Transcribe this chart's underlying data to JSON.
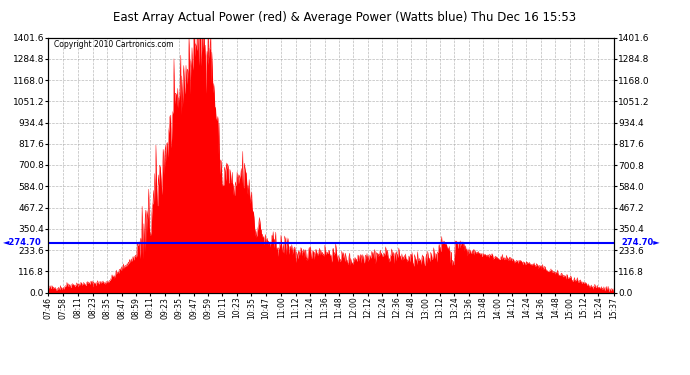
{
  "title": "East Array Actual Power (red) & Average Power (Watts blue) Thu Dec 16 15:53",
  "copyright": "Copyright 2010 Cartronics.com",
  "average_power": 274.7,
  "y_max": 1401.6,
  "y_min": 0.0,
  "y_ticks": [
    0.0,
    116.8,
    233.6,
    350.4,
    467.2,
    584.0,
    700.8,
    817.6,
    934.4,
    1051.2,
    1168.0,
    1284.8,
    1401.6
  ],
  "fill_color": "#FF0000",
  "avg_line_color": "#0000FF",
  "background_color": "#FFFFFF",
  "grid_color": "#AAAAAA",
  "title_color": "#000000",
  "tick_labels": [
    "07:46",
    "07:58",
    "08:11",
    "08:23",
    "08:35",
    "08:47",
    "08:59",
    "09:11",
    "09:23",
    "09:35",
    "09:47",
    "09:59",
    "10:11",
    "10:23",
    "10:35",
    "10:47",
    "11:00",
    "11:12",
    "11:24",
    "11:36",
    "11:48",
    "12:00",
    "12:12",
    "12:24",
    "12:36",
    "12:48",
    "13:00",
    "13:12",
    "13:24",
    "13:36",
    "13:48",
    "14:00",
    "14:12",
    "14:24",
    "14:36",
    "14:48",
    "15:00",
    "15:12",
    "15:24",
    "15:37"
  ]
}
